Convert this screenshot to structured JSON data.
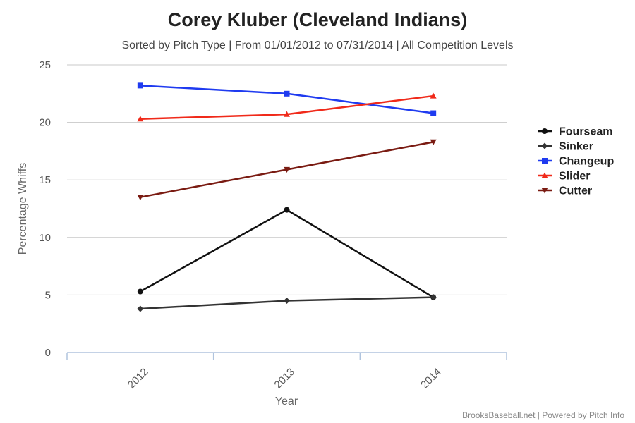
{
  "chart_data": {
    "type": "line",
    "title": "Corey Kluber (Cleveland Indians)",
    "subtitle": "Sorted by Pitch Type | From 01/01/2012 to 07/31/2014 | All Competition Levels",
    "xlabel": "Year",
    "ylabel": "Percentage Whiffs",
    "categories": [
      "2012",
      "2013",
      "2014"
    ],
    "ylim": [
      0,
      25
    ],
    "yticks": [
      0,
      5,
      10,
      15,
      20,
      25
    ],
    "grid": true,
    "legend_position": "right",
    "series": [
      {
        "name": "Fourseam",
        "values": [
          5.3,
          12.4,
          4.8
        ],
        "color": "#111111",
        "marker": "circle"
      },
      {
        "name": "Sinker",
        "values": [
          3.8,
          4.5,
          4.8
        ],
        "color": "#333333",
        "marker": "diamond"
      },
      {
        "name": "Changeup",
        "values": [
          23.2,
          22.5,
          20.8
        ],
        "color": "#1f3bf0",
        "marker": "square"
      },
      {
        "name": "Slider",
        "values": [
          20.3,
          20.7,
          22.3
        ],
        "color": "#f02a1a",
        "marker": "triangle-up"
      },
      {
        "name": "Cutter",
        "values": [
          13.5,
          15.9,
          18.3
        ],
        "color": "#7a1b12",
        "marker": "triangle-down"
      }
    ]
  },
  "credits": "BrooksBaseball.net | Powered by Pitch Info"
}
